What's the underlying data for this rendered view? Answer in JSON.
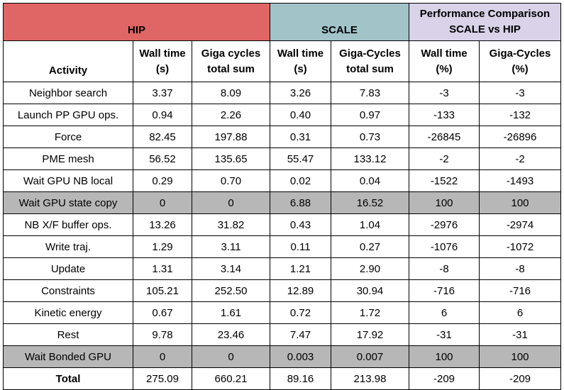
{
  "groups": {
    "hip": "HIP",
    "scale": "SCALE",
    "perf_line1": "Performance Comparison",
    "perf_line2": "SCALE vs HIP"
  },
  "headers": {
    "activity": "Activity",
    "hip_wall_1": "Wall time",
    "hip_wall_2": "(s)",
    "hip_giga_1": "Giga cycles",
    "hip_giga_2": "total sum",
    "scale_wall_1": "Wall time",
    "scale_wall_2": "(s)",
    "scale_giga_1": "Giga-Cycles",
    "scale_giga_2": "total sum",
    "perf_wall_1": "Wall time",
    "perf_wall_2": "(%)",
    "perf_giga_1": "Giga-Cycles",
    "perf_giga_2": "(%)"
  },
  "colors": {
    "hip_header": "#e06666",
    "scale_header": "#a2c4c9",
    "perf_header": "#d9d2e9",
    "highlight_row": "#b7b7b7"
  },
  "rows": [
    {
      "activity": "Neighbor search",
      "hip_wall": "3.37",
      "hip_giga": "8.09",
      "scale_wall": "3.26",
      "scale_giga": "7.83",
      "perf_wall": "-3",
      "perf_giga": "-3"
    },
    {
      "activity": "Launch PP GPU ops.",
      "hip_wall": "0.94",
      "hip_giga": "2.26",
      "scale_wall": "0.40",
      "scale_giga": "0.97",
      "perf_wall": "-133",
      "perf_giga": "-132"
    },
    {
      "activity": "Force",
      "hip_wall": "82.45",
      "hip_giga": "197.88",
      "scale_wall": "0.31",
      "scale_giga": "0.73",
      "perf_wall": "-26845",
      "perf_giga": "-26896"
    },
    {
      "activity": "PME mesh",
      "hip_wall": "56.52",
      "hip_giga": "135.65",
      "scale_wall": "55.47",
      "scale_giga": "133.12",
      "perf_wall": "-2",
      "perf_giga": "-2"
    },
    {
      "activity": "Wait GPU NB local",
      "hip_wall": "0.29",
      "hip_giga": "0.70",
      "scale_wall": "0.02",
      "scale_giga": "0.04",
      "perf_wall": "-1522",
      "perf_giga": "-1493"
    },
    {
      "activity": "Wait GPU state copy",
      "hip_wall": "0",
      "hip_giga": "0",
      "scale_wall": "6.88",
      "scale_giga": "16.52",
      "perf_wall": "100",
      "perf_giga": "100"
    },
    {
      "activity": "NB X/F buffer ops.",
      "hip_wall": "13.26",
      "hip_giga": "31.82",
      "scale_wall": "0.43",
      "scale_giga": "1.04",
      "perf_wall": "-2976",
      "perf_giga": "-2974"
    },
    {
      "activity": "Write traj.",
      "hip_wall": "1.29",
      "hip_giga": "3.11",
      "scale_wall": "0.11",
      "scale_giga": "0.27",
      "perf_wall": "-1076",
      "perf_giga": "-1072"
    },
    {
      "activity": "Update",
      "hip_wall": "1.31",
      "hip_giga": "3.14",
      "scale_wall": "1.21",
      "scale_giga": "2.90",
      "perf_wall": "-8",
      "perf_giga": "-8"
    },
    {
      "activity": "Constraints",
      "hip_wall": "105.21",
      "hip_giga": "252.50",
      "scale_wall": "12.89",
      "scale_giga": "30.94",
      "perf_wall": "-716",
      "perf_giga": "-716"
    },
    {
      "activity": "Kinetic energy",
      "hip_wall": "0.67",
      "hip_giga": "1.61",
      "scale_wall": "0.72",
      "scale_giga": "1.72",
      "perf_wall": "6",
      "perf_giga": "6"
    },
    {
      "activity": "Rest",
      "hip_wall": "9.78",
      "hip_giga": "23.46",
      "scale_wall": "7.47",
      "scale_giga": "17.92",
      "perf_wall": "-31",
      "perf_giga": "-31"
    },
    {
      "activity": "Wait Bonded GPU",
      "hip_wall": "0",
      "hip_giga": "0",
      "scale_wall": "0.003",
      "scale_giga": "0.007",
      "perf_wall": "100",
      "perf_giga": "100"
    },
    {
      "activity": "Total",
      "hip_wall": "275.09",
      "hip_giga": "660.21",
      "scale_wall": "89.16",
      "scale_giga": "213.98",
      "perf_wall": "-209",
      "perf_giga": "-209"
    }
  ]
}
